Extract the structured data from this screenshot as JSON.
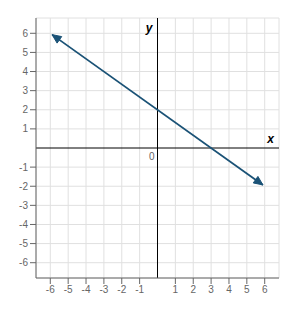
{
  "chart_data": {
    "type": "line",
    "x": [
      -5.9,
      5.9
    ],
    "values": [
      5.93,
      -1.93
    ],
    "color": "#1a5276",
    "marker": "arrow",
    "xlabel": "x",
    "ylabel": "y",
    "xlim": [
      -6.8,
      6.8
    ],
    "ylim": [
      -6.8,
      6.8
    ],
    "xticks": [
      -6,
      -5,
      -4,
      -3,
      -2,
      -1,
      1,
      2,
      3,
      4,
      5,
      6
    ],
    "yticks": [
      -6,
      -5,
      -4,
      -3,
      -2,
      -1,
      1,
      2,
      3,
      4,
      5,
      6
    ],
    "grid": true,
    "annotations": [
      {
        "text": "0",
        "x": 0,
        "y": 0
      }
    ]
  }
}
